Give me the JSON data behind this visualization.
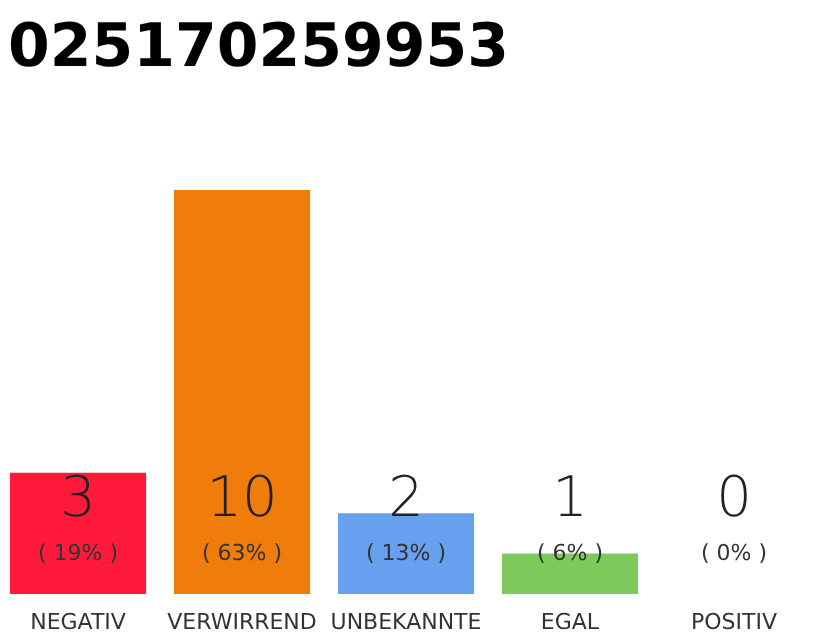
{
  "chart_data": {
    "type": "bar",
    "title": "025170259953",
    "categories": [
      "NEGATIV",
      "VERWIRREND",
      "UNBEKANNTE",
      "EGAL",
      "POSITIV"
    ],
    "values": [
      3,
      10,
      2,
      1,
      0
    ],
    "colors": [
      "#ff1a3c",
      "#f07c0c",
      "#66a0ee",
      "#7ec95c",
      "#2aa84a"
    ],
    "data_labels": true,
    "annotations": [
      "( 19% )",
      "( 63% )",
      "( 13% )",
      "( 6% )",
      "( 0% )"
    ]
  }
}
